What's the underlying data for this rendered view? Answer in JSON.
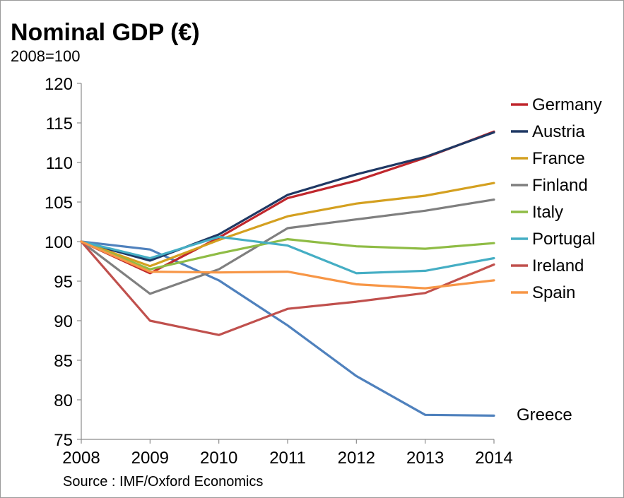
{
  "chart_data": {
    "type": "line",
    "title": "Nominal GDP (€)",
    "subtitle": "2008=100",
    "source": "Source : IMF/Oxford Economics",
    "x": [
      "2008",
      "2009",
      "2010",
      "2011",
      "2012",
      "2013",
      "2014"
    ],
    "ylim": [
      75,
      120
    ],
    "yticks": [
      75,
      80,
      85,
      90,
      95,
      100,
      105,
      110,
      115,
      120
    ],
    "grid": false,
    "legend": "right",
    "series": [
      {
        "name": "Germany",
        "color": "#c0272d",
        "values": [
          100,
          96.0,
          100.5,
          105.5,
          107.7,
          110.6,
          113.9
        ]
      },
      {
        "name": "Austria",
        "color": "#1f3864",
        "values": [
          100,
          97.6,
          100.9,
          105.9,
          108.5,
          110.7,
          113.8
        ]
      },
      {
        "name": "France",
        "color": "#d4a020",
        "values": [
          100,
          96.9,
          100.2,
          103.2,
          104.8,
          105.8,
          107.4
        ]
      },
      {
        "name": "Finland",
        "color": "#7f7f7f",
        "values": [
          100,
          93.4,
          96.5,
          101.7,
          102.8,
          103.9,
          105.3
        ]
      },
      {
        "name": "Italy",
        "color": "#8fbc45",
        "values": [
          100,
          96.5,
          98.5,
          100.3,
          99.4,
          99.1,
          99.8
        ]
      },
      {
        "name": "Portugal",
        "color": "#45aec4",
        "values": [
          100,
          97.9,
          100.6,
          99.5,
          96.0,
          96.3,
          97.9
        ]
      },
      {
        "name": "Ireland",
        "color": "#c0504d",
        "values": [
          100,
          90.0,
          88.2,
          91.5,
          92.4,
          93.5,
          97.1
        ]
      },
      {
        "name": "Spain",
        "color": "#f79646",
        "values": [
          100,
          96.2,
          96.1,
          96.2,
          94.6,
          94.1,
          95.1
        ]
      },
      {
        "name": "Greece",
        "color": "#4f81bd",
        "values": [
          100,
          99.0,
          95.1,
          89.4,
          83.0,
          78.1,
          78.0
        ]
      }
    ],
    "annotations": [
      {
        "text": "Greece",
        "series": "Greece"
      }
    ]
  }
}
